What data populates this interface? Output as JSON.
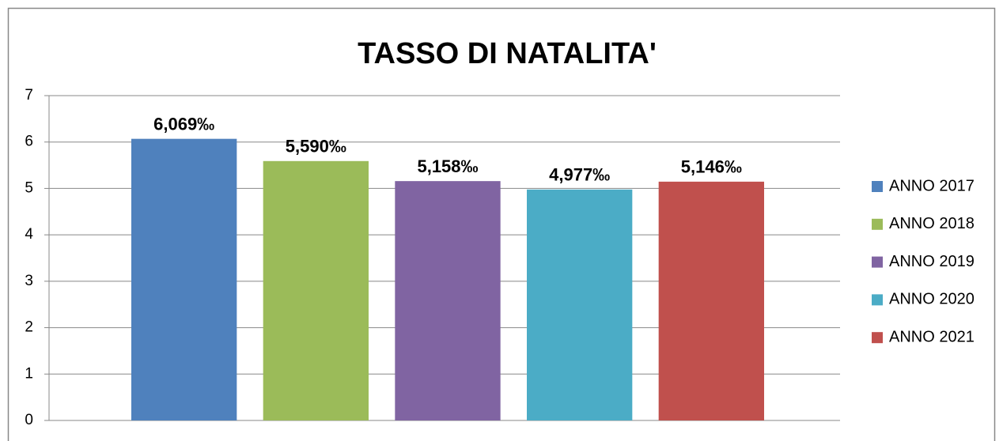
{
  "chart_data": {
    "type": "bar",
    "title": "TASSO DI NATALITA'",
    "series": [
      {
        "name": "ANNO 2017",
        "color": "#4f81bd",
        "values": [
          6.069
        ],
        "value_labels": [
          "6,069‰"
        ]
      },
      {
        "name": "ANNO 2018",
        "color": "#9bbb59",
        "values": [
          5.59
        ],
        "value_labels": [
          "5,590‰"
        ]
      },
      {
        "name": "ANNO 2019",
        "color": "#8064a2",
        "values": [
          5.158
        ],
        "value_labels": [
          "5,158‰"
        ]
      },
      {
        "name": "ANNO 2020",
        "color": "#4bacc6",
        "values": [
          4.977
        ],
        "value_labels": [
          "4,977‰"
        ]
      },
      {
        "name": "ANNO 2021",
        "color": "#c0504d",
        "values": [
          5.146
        ],
        "value_labels": [
          "5,146‰"
        ]
      }
    ],
    "ylim": [
      0,
      7
    ],
    "yticks": [
      0,
      1,
      2,
      3,
      4,
      5,
      6,
      7
    ],
    "grid": true,
    "legend": "right"
  }
}
